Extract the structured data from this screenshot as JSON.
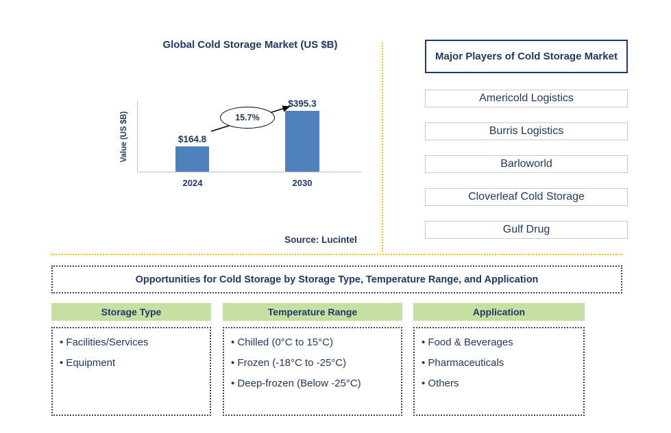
{
  "chart_data": {
    "type": "bar",
    "title": "Global Cold Storage Market (US $B)",
    "ylabel": "Value (US $B)",
    "categories": [
      "2024",
      "2030"
    ],
    "values": [
      164.8,
      395.3
    ],
    "value_labels": [
      "$164.8",
      "$395.3"
    ],
    "cagr_annotation": "15.7%",
    "source": "Source: Lucintel",
    "bar_color": "#4f81bd",
    "ylim": [
      0,
      420
    ],
    "grid": false,
    "legend": false
  },
  "players": {
    "title": "Major Players of Cold Storage Market",
    "items": [
      "Americold Logistics",
      "Burris Logistics",
      "Barloworld",
      "Cloverleaf Cold Storage",
      "Gulf Drug"
    ]
  },
  "opportunities": {
    "title": "Opportunities for Cold Storage by Storage Type, Temperature Range, and Application",
    "columns": [
      {
        "header": "Storage Type",
        "items": [
          "Facilities/Services",
          "Equipment"
        ]
      },
      {
        "header": "Temperature Range",
        "items": [
          "Chilled (0°C to 15°C)",
          "Frozen (-18°C to -25°C)",
          "Deep-frozen (Below -25°C)"
        ]
      },
      {
        "header": "Application",
        "items": [
          "Food & Beverages",
          "Pharmaceuticals",
          "Others"
        ]
      }
    ]
  },
  "colors": {
    "text_navy": "#1f3864",
    "bar_blue": "#4f81bd",
    "header_green": "#c6e0a4",
    "divider_yellow": "#ffc000"
  }
}
